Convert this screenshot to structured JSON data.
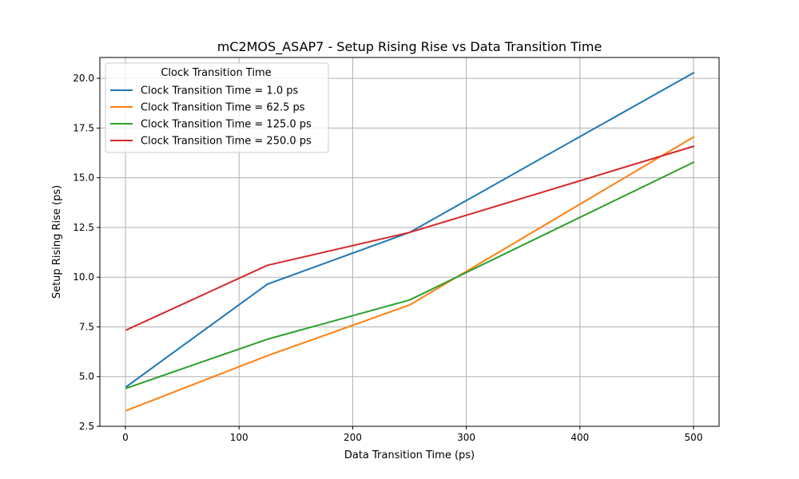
{
  "chart_data": {
    "type": "line",
    "title": "mC2MOS_ASAP7 - Setup Rising Rise vs Data Transition Time",
    "xlabel": "Data Transition Time (ps)",
    "ylabel": "Setup Rising Rise (ps)",
    "xlim": [
      -22.5,
      522.5
    ],
    "ylim": [
      2.5,
      21.05
    ],
    "xticks": [
      0,
      100,
      200,
      300,
      400,
      500
    ],
    "yticks": [
      2.5,
      5.0,
      7.5,
      10.0,
      12.5,
      15.0,
      17.5,
      20.0
    ],
    "xtick_labels": [
      "0",
      "100",
      "200",
      "300",
      "400",
      "500"
    ],
    "ytick_labels": [
      "2.5",
      "5.0",
      "7.5",
      "10.0",
      "12.5",
      "15.0",
      "17.5",
      "20.0"
    ],
    "grid": true,
    "legend": {
      "title": "Clock Transition Time",
      "placement": "top-left"
    },
    "x": [
      1.0,
      125.0,
      250.0,
      500.0
    ],
    "series": [
      {
        "name": "Clock Transition Time = 1.0 ps",
        "color": "#1f77b4",
        "values": [
          4.5,
          9.65,
          12.25,
          20.28
        ]
      },
      {
        "name": "Clock Transition Time = 62.5 ps",
        "color": "#ff7f0e",
        "values": [
          3.3,
          6.05,
          8.6,
          17.05
        ]
      },
      {
        "name": "Clock Transition Time = 125.0 ps",
        "color": "#2ca02c",
        "values": [
          4.42,
          6.88,
          8.85,
          15.78
        ]
      },
      {
        "name": "Clock Transition Time = 250.0 ps",
        "color": "#d62728",
        "values": [
          7.35,
          10.6,
          12.25,
          16.58
        ]
      }
    ]
  }
}
